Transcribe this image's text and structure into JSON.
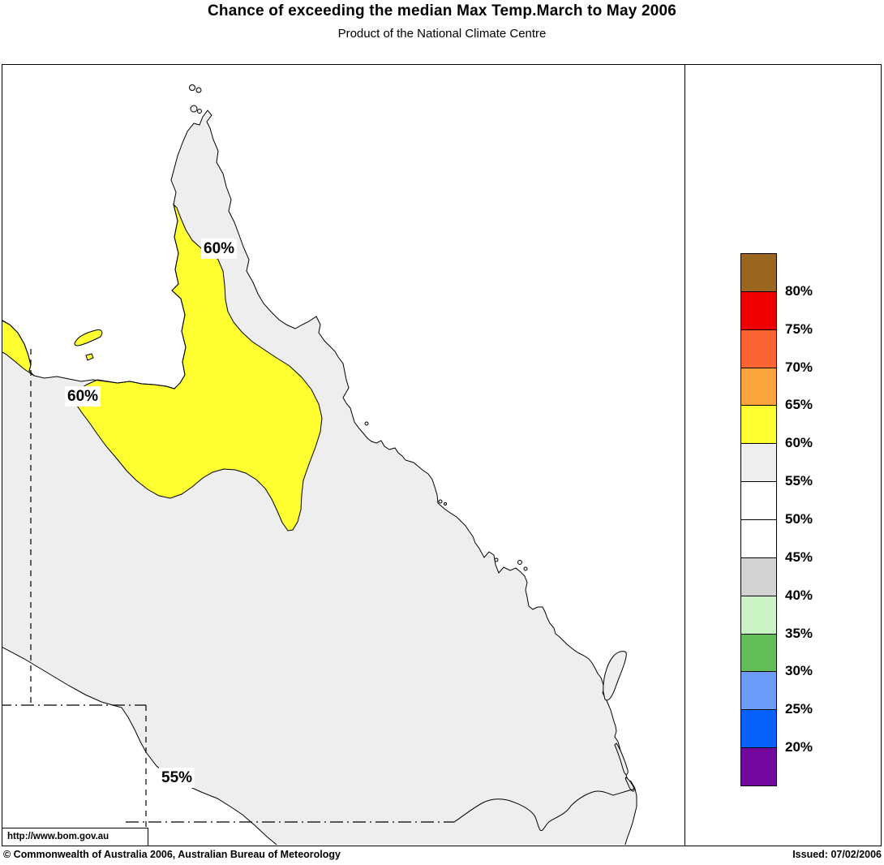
{
  "title": "Chance of exceeding the median Max Temp.March to May 2006",
  "subtitle": "Product of the National Climate Centre",
  "legend": {
    "boxes": [
      {
        "color": "#9A661F",
        "label": "80%"
      },
      {
        "color": "#EE0000",
        "label": "75%"
      },
      {
        "color": "#FA6432",
        "label": "70%"
      },
      {
        "color": "#FCA43C",
        "label": "65%"
      },
      {
        "color": "#FFFF32",
        "label": "60%"
      },
      {
        "color": "#EEEEEE",
        "label": "55%"
      },
      {
        "color": "#FFFFFF",
        "label": "50%"
      },
      {
        "color": "#FFFFFF",
        "label": "45%"
      },
      {
        "color": "#D2D2D2",
        "label": "40%"
      },
      {
        "color": "#C9F3C2",
        "label": "35%"
      },
      {
        "color": "#63BD58",
        "label": "30%"
      },
      {
        "color": "#6C9BFA",
        "label": "25%"
      },
      {
        "color": "#0561FA",
        "label": "20%"
      },
      {
        "color": "#73089E",
        "label": ""
      }
    ]
  },
  "map": {
    "labels": [
      {
        "text": "60%"
      },
      {
        "text": "60%"
      },
      {
        "text": "55%"
      }
    ],
    "region_colors": {
      "band_60_65": "#FFFF32",
      "band_55_60": "#EEEEEE",
      "band_45_55": "#FFFFFF",
      "sea": "#FFFFFF"
    }
  },
  "footer": {
    "url": "http://www.bom.gov.au",
    "copyright": "© Commonwealth of Australia 2006, Australian Bureau of Meteorology",
    "issued": "Issued: 07/02/2006"
  }
}
